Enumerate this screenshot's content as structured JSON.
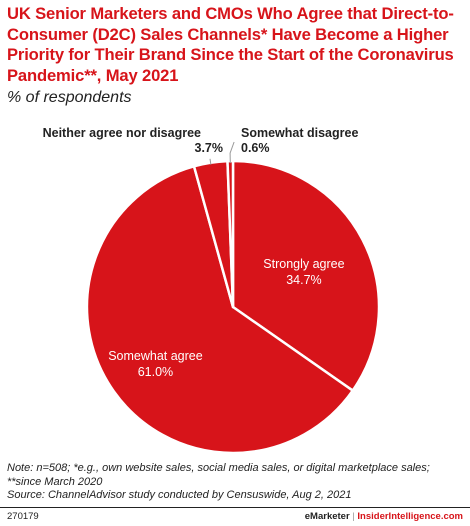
{
  "chart_data": {
    "type": "pie",
    "title": "UK Senior Marketers and CMOs Who Agree that Direct-to-Consumer (D2C) Sales Channels* Have Become a Higher Priority for Their Brand Since the Start of the Coronavirus Pandemic**, May 2021",
    "subtitle": "% of respondents",
    "slices": [
      {
        "label": "Strongly agree",
        "value": 34.7,
        "value_label": "34.7%",
        "color": "#d7141a"
      },
      {
        "label": "Somewhat agree",
        "value": 61.0,
        "value_label": "61.0%",
        "color": "#d7141a"
      },
      {
        "label": "Neither agree nor disagree",
        "value": 3.7,
        "value_label": "3.7%",
        "color": "#d7141a"
      },
      {
        "label": "Somewhat disagree",
        "value": 0.6,
        "value_label": "0.6%",
        "color": "#d7141a"
      }
    ]
  },
  "notes": {
    "line1": "Note: n=508; *e.g., own website sales, social media sales, or digital marketplace sales;",
    "line2": "**since March 2020",
    "line3": "Source: ChannelAdvisor study conducted by Censuswide, Aug 2, 2021"
  },
  "footer": {
    "chart_id": "270179",
    "brand": "eMarketer",
    "separator": "|",
    "site": "InsiderIntelligence.com"
  },
  "colors": {
    "accent": "#d7141a",
    "text": "#222222"
  }
}
